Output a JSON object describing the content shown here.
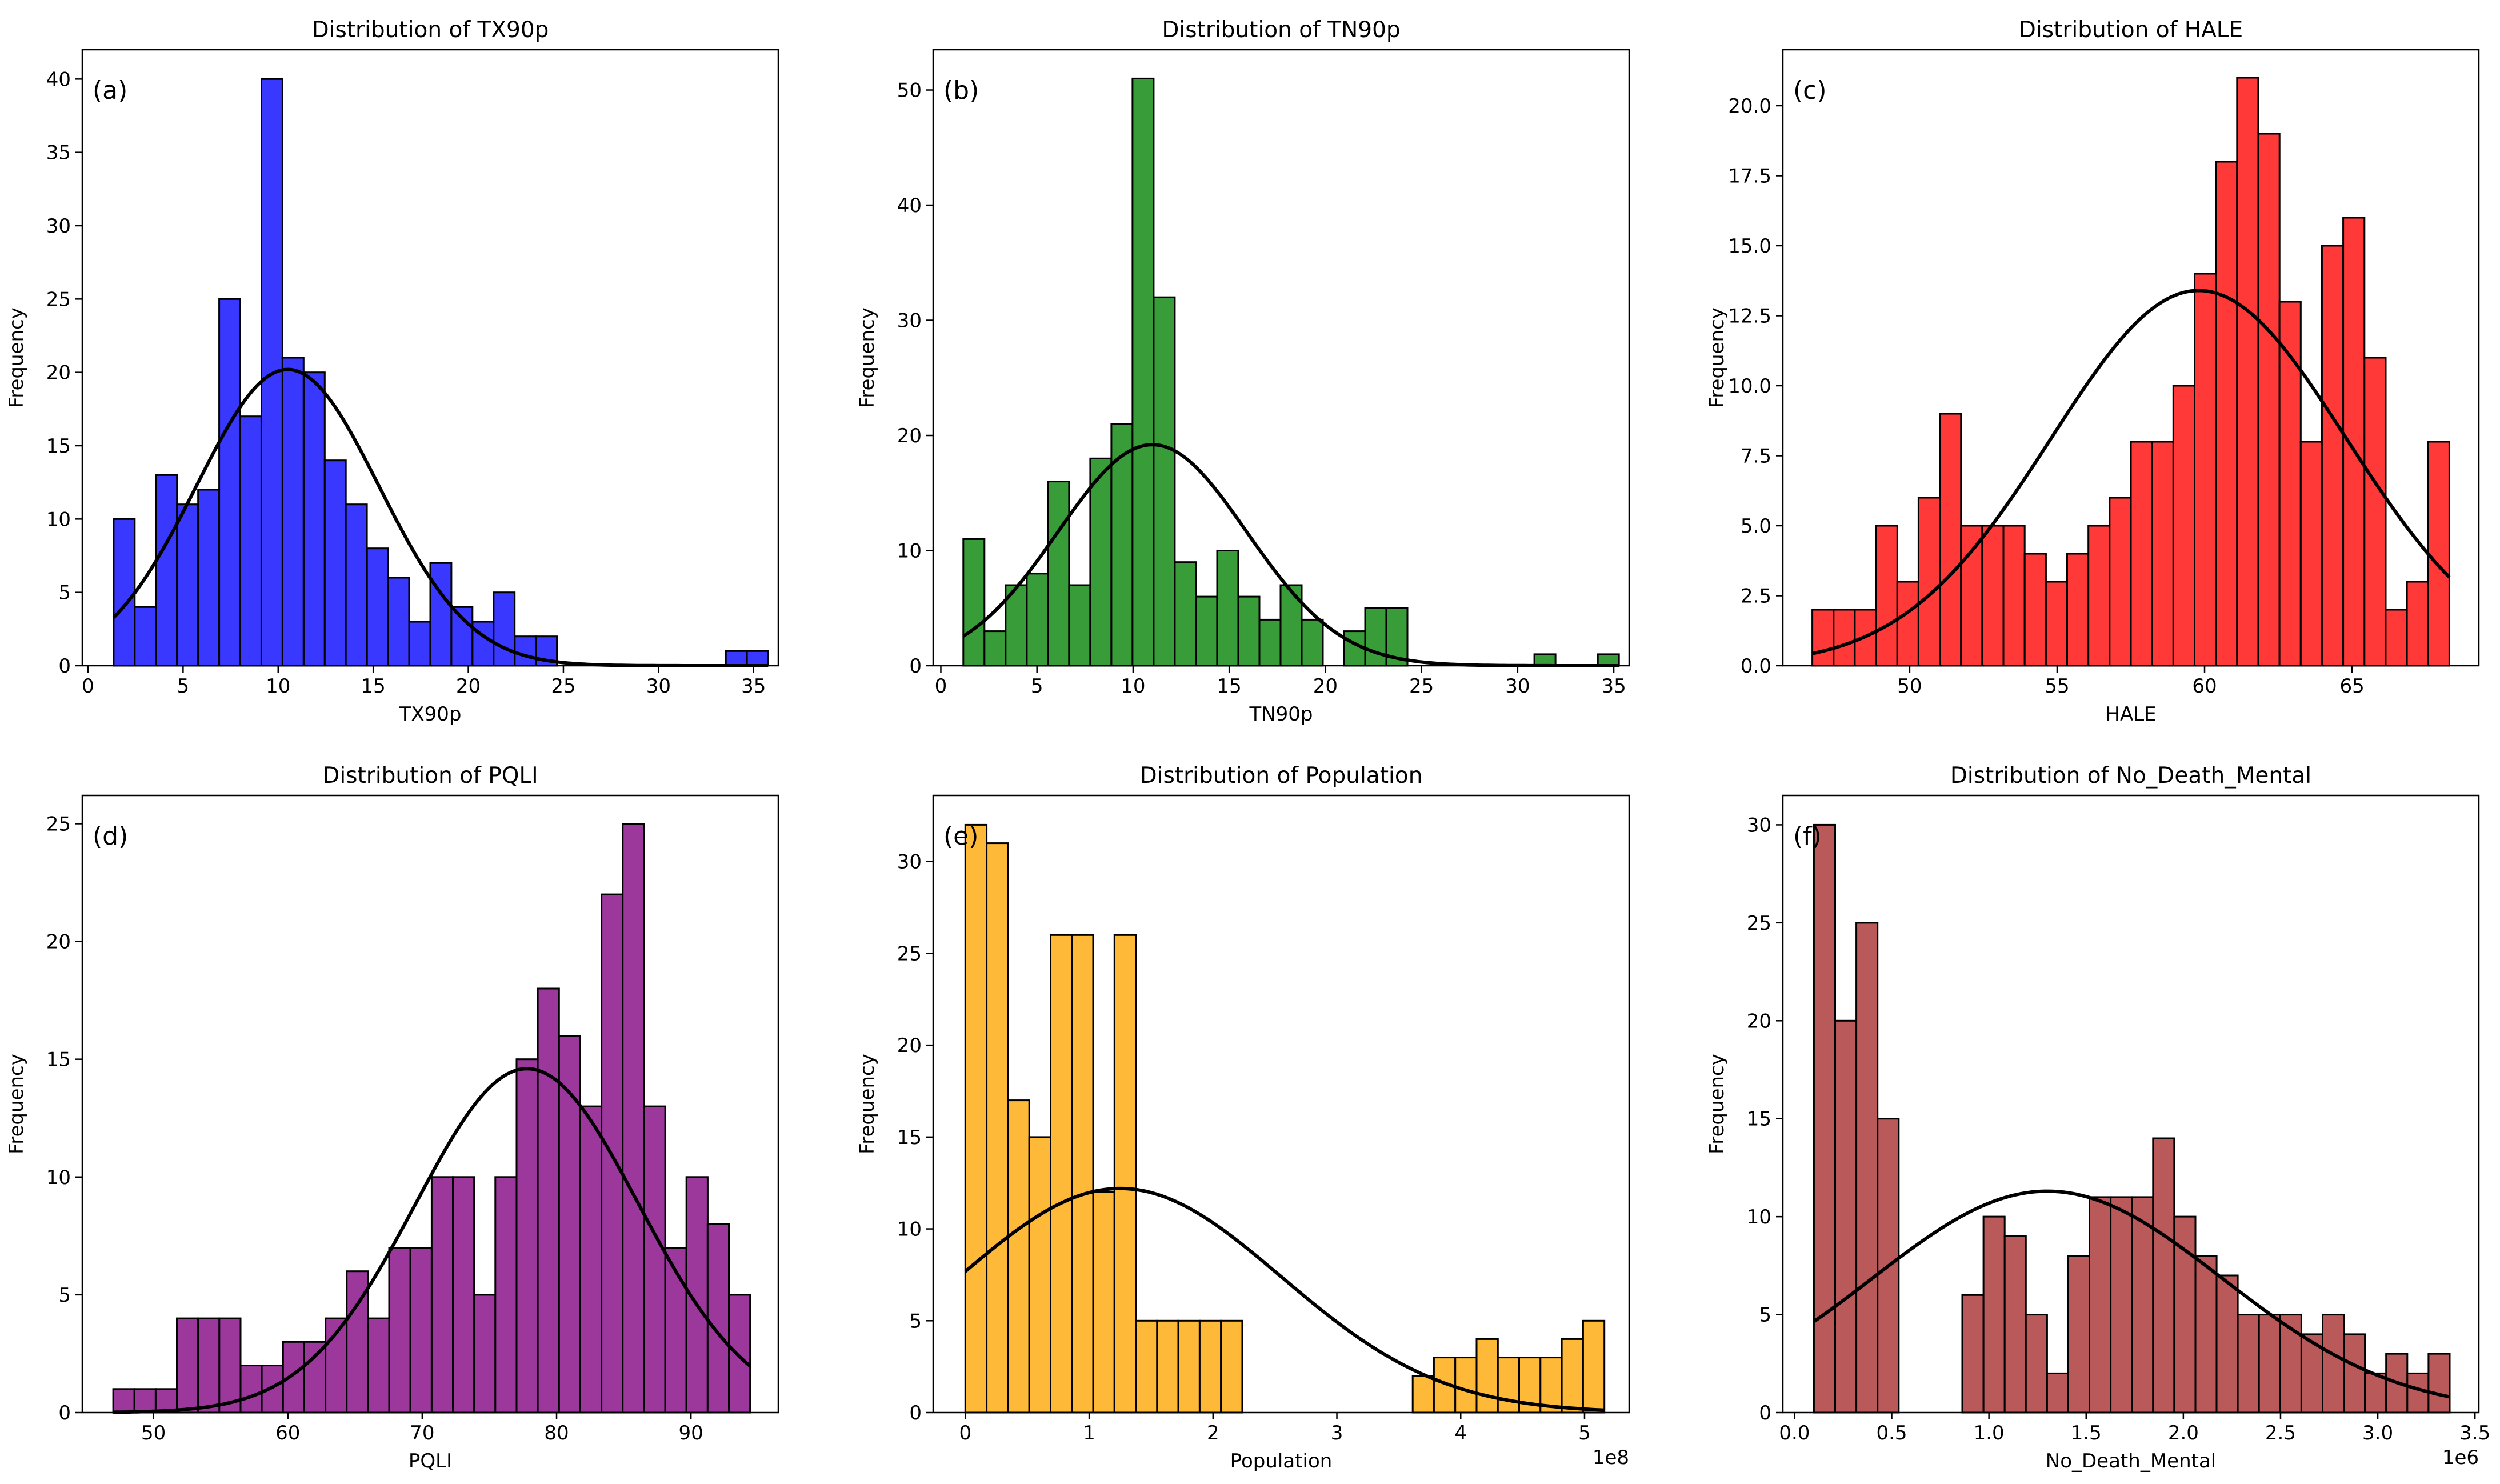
{
  "chart_data": [
    {
      "id": "a",
      "type": "bar",
      "panel_label": "(a)",
      "title": "Distribution of TX90p",
      "xlabel": "TX90p",
      "ylabel": "Frequency",
      "xlim": [
        -0.3,
        36.3
      ],
      "ylim": [
        0,
        42
      ],
      "xticks": [
        0,
        5,
        10,
        15,
        20,
        25,
        30,
        35
      ],
      "xtick_labels": [
        "0",
        "5",
        "10",
        "15",
        "20",
        "25",
        "30",
        "35"
      ],
      "yticks": [
        0,
        5,
        10,
        15,
        20,
        25,
        30,
        35,
        40
      ],
      "ytick_labels": [
        "0",
        "5",
        "10",
        "15",
        "20",
        "25",
        "30",
        "35",
        "40"
      ],
      "offset_text": "",
      "color": "#0000FF",
      "bin_start": 1.35,
      "bin_width": 1.11,
      "counts": [
        10,
        4,
        13,
        11,
        12,
        25,
        17,
        40,
        21,
        20,
        14,
        11,
        8,
        6,
        3,
        7,
        4,
        3,
        5,
        2,
        2,
        0,
        0,
        0,
        0,
        0,
        0,
        0,
        0,
        1,
        1
      ],
      "fit": {
        "mean": 10.5,
        "sd": 4.8,
        "peak": 20.2
      }
    },
    {
      "id": "b",
      "type": "bar",
      "panel_label": "(b)",
      "title": "Distribution of TN90p",
      "xlabel": "TN90p",
      "ylabel": "Frequency",
      "xlim": [
        -0.4,
        35.8
      ],
      "ylim": [
        0,
        53.5
      ],
      "xticks": [
        0,
        5,
        10,
        15,
        20,
        25,
        30,
        35
      ],
      "xtick_labels": [
        "0",
        "5",
        "10",
        "15",
        "20",
        "25",
        "30",
        "35"
      ],
      "yticks": [
        0,
        10,
        20,
        30,
        40,
        50
      ],
      "ytick_labels": [
        "0",
        "10",
        "20",
        "30",
        "40",
        "50"
      ],
      "offset_text": "",
      "color": "#008000",
      "bin_start": 1.17,
      "bin_width": 1.1,
      "counts": [
        11,
        3,
        7,
        8,
        16,
        7,
        18,
        21,
        51,
        32,
        9,
        6,
        10,
        6,
        4,
        7,
        4,
        0,
        3,
        5,
        5,
        0,
        0,
        0,
        0,
        0,
        0,
        1,
        0,
        0,
        1
      ],
      "fit": {
        "mean": 11.0,
        "sd": 4.9,
        "peak": 19.2
      }
    },
    {
      "id": "c",
      "type": "bar",
      "panel_label": "(c)",
      "title": "Distribution of HALE",
      "xlabel": "HALE",
      "ylabel": "Frequency",
      "xlim": [
        45.7,
        69.3
      ],
      "ylim": [
        0,
        22
      ],
      "xticks": [
        50,
        55,
        60,
        65
      ],
      "xtick_labels": [
        "50",
        "55",
        "60",
        "65"
      ],
      "yticks": [
        0,
        2.5,
        5,
        7.5,
        10,
        12.5,
        15,
        17.5,
        20
      ],
      "ytick_labels": [
        "0.0",
        "2.5",
        "5.0",
        "7.5",
        "10.0",
        "12.5",
        "15.0",
        "17.5",
        "20.0"
      ],
      "offset_text": "",
      "color": "#FF0000",
      "bin_start": 46.7,
      "bin_width": 0.72,
      "counts": [
        2,
        2,
        2,
        5,
        3,
        6,
        9,
        5,
        5,
        5,
        4,
        3,
        4,
        5,
        6,
        8,
        8,
        10,
        14,
        18,
        21,
        19,
        13,
        8,
        15,
        16,
        11,
        2,
        3,
        8
      ],
      "fit": {
        "mean": 59.8,
        "sd": 5.0,
        "peak": 13.4
      }
    },
    {
      "id": "d",
      "type": "bar",
      "panel_label": "(d)",
      "title": "Distribution of PQLI",
      "xlabel": "PQLI",
      "ylabel": "Frequency",
      "xlim": [
        44.7,
        96.5
      ],
      "ylim": [
        0,
        26.2
      ],
      "xticks": [
        50,
        60,
        70,
        80,
        90
      ],
      "xtick_labels": [
        "50",
        "60",
        "70",
        "80",
        "90"
      ],
      "yticks": [
        0,
        5,
        10,
        15,
        20,
        25
      ],
      "ytick_labels": [
        "0",
        "5",
        "10",
        "15",
        "20",
        "25"
      ],
      "offset_text": "",
      "color": "#800080",
      "bin_start": 47.0,
      "bin_width": 1.58,
      "counts": [
        1,
        1,
        1,
        4,
        4,
        4,
        2,
        2,
        3,
        3,
        4,
        6,
        4,
        7,
        7,
        10,
        10,
        5,
        10,
        15,
        18,
        16,
        13,
        22,
        25,
        13,
        7,
        10,
        8,
        5
      ],
      "fit": {
        "mean": 77.8,
        "sd": 8.3,
        "peak": 14.6
      }
    },
    {
      "id": "e",
      "type": "bar",
      "panel_label": "(e)",
      "title": "Distribution of Population",
      "xlabel": "Population",
      "ylabel": "Frequency",
      "xlim": [
        -0.26,
        5.36
      ],
      "ylim": [
        0,
        33.6
      ],
      "xticks": [
        0,
        1,
        2,
        3,
        4,
        5
      ],
      "xtick_labels": [
        "0",
        "1",
        "2",
        "3",
        "4",
        "5"
      ],
      "yticks": [
        0,
        5,
        10,
        15,
        20,
        25,
        30
      ],
      "ytick_labels": [
        "0",
        "5",
        "10",
        "15",
        "20",
        "25",
        "30"
      ],
      "offset_text": "1e8",
      "color": "#FFA500",
      "bin_start": 0.0,
      "bin_width": 0.172,
      "counts": [
        32,
        31,
        17,
        15,
        26,
        26,
        12,
        26,
        5,
        5,
        5,
        5,
        5,
        0,
        0,
        0,
        0,
        0,
        0,
        0,
        0,
        2,
        3,
        3,
        4,
        3,
        3,
        3,
        4,
        5
      ],
      "fit": {
        "mean": 1.25,
        "sd": 1.3,
        "peak": 12.2
      }
    },
    {
      "id": "f",
      "type": "bar",
      "panel_label": "(f)",
      "title": "Distribution of No_Death_Mental",
      "xlabel": "No_Death_Mental",
      "ylabel": "Frequency",
      "xlim": [
        -0.06,
        3.52
      ],
      "ylim": [
        0,
        31.5
      ],
      "xticks": [
        0,
        0.5,
        1,
        1.5,
        2,
        2.5,
        3,
        3.5
      ],
      "xtick_labels": [
        "0.0",
        "0.5",
        "1.0",
        "1.5",
        "2.0",
        "2.5",
        "3.0",
        "3.5"
      ],
      "yticks": [
        0,
        5,
        10,
        15,
        20,
        25,
        30
      ],
      "ytick_labels": [
        "0",
        "5",
        "10",
        "15",
        "20",
        "25",
        "30"
      ],
      "offset_text": "1e6",
      "color": "#A52A2A",
      "bin_start": 0.1,
      "bin_width": 0.109,
      "counts": [
        30,
        20,
        25,
        15,
        0,
        0,
        0,
        6,
        10,
        9,
        5,
        2,
        8,
        11,
        11,
        11,
        14,
        10,
        8,
        7,
        5,
        5,
        5,
        4,
        5,
        4,
        2,
        3,
        2,
        3
      ],
      "fit": {
        "mean": 1.3,
        "sd": 0.9,
        "peak": 11.3
      }
    }
  ]
}
